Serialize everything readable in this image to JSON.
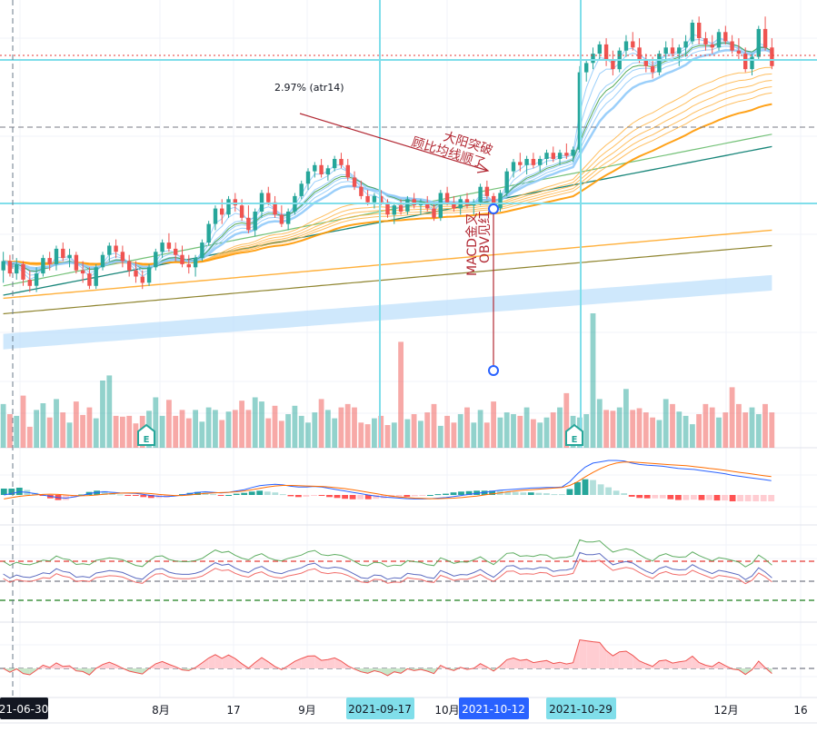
{
  "chart_data": {
    "type": "candlestick",
    "title": "",
    "colors": {
      "up": "#26a69a",
      "down": "#ef5350",
      "volume_up": "#26a69a",
      "volume_down": "#ef5350",
      "grid": "#f0f3fa",
      "crosshair_cyan": "#80deea",
      "annotation_red": "#b22833",
      "marker_blue": "#2962ff",
      "ma_short_blue": "#90caf9",
      "ma_short_green": "#43a047",
      "ma_long_orange": "#ffb74d",
      "ma_orange_bold": "#ff9800",
      "ma_green": "#66bb6a",
      "ma_teal": "#00796b",
      "ma_orange2": "#ffa726",
      "ma_olive": "#827717",
      "band_blue": "#bbdefb",
      "macd_line": "#2962ff",
      "signal_line": "#ff6d00",
      "rsi_green": "#43a047",
      "rsi_blue": "#3f51b5",
      "rsi_red": "#ef5350",
      "area_pos": "#ffcdd2",
      "area_neg": "#c8e6c9",
      "date_badge_cyan": "#80deea",
      "date_badge_blue": "#2962ff",
      "date_badge_dark": "#131722"
    },
    "x_axis": {
      "tick_labels": [
        "8月",
        "17",
        "9月",
        "10月",
        "12月",
        "16"
      ],
      "highlighted_dates": [
        {
          "label": "21-06-30",
          "style": "dark"
        },
        {
          "label": "2021-09-17",
          "style": "cyan"
        },
        {
          "label": "2021-10-12",
          "style": "blue"
        },
        {
          "label": "2021-10-29",
          "style": "cyan"
        }
      ]
    },
    "annotations": {
      "atr_label": "2.97% (atr14)",
      "arrow_text_line1": "大阳突破",
      "arrow_text_line2": "顾比均线顺了",
      "vertical_text_line1": "MACD金叉",
      "vertical_text_line2": "OBV见红",
      "earnings_marker_1": "E",
      "earnings_marker_2": "E"
    },
    "candles": [
      [
        12.0,
        12.6,
        11.6,
        12.3
      ],
      [
        12.3,
        12.5,
        11.8,
        11.9
      ],
      [
        11.9,
        12.4,
        11.7,
        12.2
      ],
      [
        12.2,
        12.3,
        11.5,
        11.7
      ],
      [
        11.7,
        12.0,
        11.3,
        11.5
      ],
      [
        11.5,
        12.1,
        11.3,
        11.9
      ],
      [
        11.9,
        12.5,
        11.8,
        12.4
      ],
      [
        12.4,
        12.6,
        12.0,
        12.2
      ],
      [
        12.2,
        12.8,
        12.0,
        12.7
      ],
      [
        12.7,
        12.9,
        12.3,
        12.4
      ],
      [
        12.4,
        12.7,
        12.1,
        12.5
      ],
      [
        12.5,
        12.6,
        11.9,
        12.0
      ],
      [
        12.0,
        12.3,
        11.6,
        11.9
      ],
      [
        11.9,
        12.1,
        11.4,
        11.5
      ],
      [
        11.5,
        12.2,
        11.4,
        12.1
      ],
      [
        12.1,
        12.6,
        12.0,
        12.5
      ],
      [
        12.5,
        12.9,
        12.3,
        12.8
      ],
      [
        12.8,
        13.0,
        12.4,
        12.6
      ],
      [
        12.6,
        12.8,
        12.1,
        12.3
      ],
      [
        12.3,
        12.5,
        11.8,
        12.0
      ],
      [
        12.0,
        12.3,
        11.6,
        11.8
      ],
      [
        11.8,
        12.0,
        11.4,
        11.6
      ],
      [
        11.6,
        12.2,
        11.5,
        12.1
      ],
      [
        12.1,
        12.7,
        12.0,
        12.6
      ],
      [
        12.6,
        13.0,
        12.4,
        12.9
      ],
      [
        12.9,
        13.2,
        12.6,
        12.7
      ],
      [
        12.7,
        12.9,
        12.3,
        12.5
      ],
      [
        12.5,
        12.8,
        12.1,
        12.2
      ],
      [
        12.2,
        12.5,
        11.9,
        12.1
      ],
      [
        12.1,
        12.5,
        11.8,
        12.4
      ],
      [
        12.4,
        13.0,
        12.3,
        12.9
      ],
      [
        12.9,
        13.6,
        12.8,
        13.5
      ],
      [
        13.5,
        14.1,
        13.3,
        14.0
      ],
      [
        14.0,
        14.3,
        13.5,
        13.8
      ],
      [
        13.8,
        14.4,
        13.7,
        14.3
      ],
      [
        14.3,
        14.5,
        13.9,
        14.1
      ],
      [
        14.1,
        14.3,
        13.6,
        13.7
      ],
      [
        13.7,
        14.1,
        13.2,
        13.3
      ],
      [
        13.3,
        14.0,
        13.1,
        13.9
      ],
      [
        13.9,
        14.6,
        13.7,
        14.5
      ],
      [
        14.5,
        14.7,
        14.1,
        14.2
      ],
      [
        14.2,
        14.4,
        13.7,
        13.8
      ],
      [
        13.8,
        14.1,
        13.4,
        13.5
      ],
      [
        13.5,
        14.0,
        13.3,
        13.9
      ],
      [
        13.9,
        14.5,
        13.8,
        14.4
      ],
      [
        14.4,
        14.9,
        14.3,
        14.8
      ],
      [
        14.8,
        15.3,
        14.6,
        15.2
      ],
      [
        15.2,
        15.5,
        15.0,
        15.4
      ],
      [
        15.4,
        15.6,
        15.0,
        15.1
      ],
      [
        15.1,
        15.4,
        14.9,
        15.3
      ],
      [
        15.3,
        15.7,
        15.2,
        15.6
      ],
      [
        15.6,
        15.8,
        15.3,
        15.4
      ],
      [
        15.4,
        15.6,
        14.9,
        15.0
      ],
      [
        15.0,
        15.2,
        14.6,
        14.7
      ],
      [
        14.7,
        14.9,
        14.3,
        14.4
      ],
      [
        14.4,
        14.6,
        14.1,
        14.2
      ],
      [
        14.2,
        14.5,
        14.0,
        14.4
      ],
      [
        14.4,
        14.6,
        14.1,
        14.2
      ],
      [
        14.2,
        14.3,
        13.7,
        13.8
      ],
      [
        13.8,
        14.2,
        13.5,
        14.1
      ],
      [
        14.1,
        14.3,
        13.8,
        13.9
      ],
      [
        13.9,
        14.4,
        13.8,
        14.3
      ],
      [
        14.3,
        14.5,
        14.0,
        14.1
      ],
      [
        14.1,
        14.3,
        13.8,
        14.2
      ],
      [
        14.2,
        14.4,
        13.9,
        14.0
      ],
      [
        14.0,
        14.2,
        13.6,
        13.7
      ],
      [
        13.7,
        14.6,
        13.6,
        14.5
      ],
      [
        14.5,
        14.7,
        14.1,
        14.2
      ],
      [
        14.2,
        14.4,
        13.9,
        14.0
      ],
      [
        14.0,
        14.4,
        13.8,
        14.3
      ],
      [
        14.3,
        14.5,
        14.0,
        14.1
      ],
      [
        14.1,
        14.3,
        13.8,
        14.2
      ],
      [
        14.2,
        14.8,
        14.1,
        14.7
      ],
      [
        14.7,
        14.9,
        14.3,
        14.4
      ],
      [
        14.4,
        14.5,
        13.9,
        14.0
      ],
      [
        14.0,
        14.6,
        13.9,
        14.5
      ],
      [
        14.5,
        15.3,
        14.4,
        15.2
      ],
      [
        15.2,
        15.6,
        15.0,
        15.5
      ],
      [
        15.5,
        15.8,
        15.2,
        15.4
      ],
      [
        15.4,
        15.7,
        15.1,
        15.6
      ],
      [
        15.6,
        15.8,
        15.3,
        15.4
      ],
      [
        15.4,
        15.7,
        15.2,
        15.6
      ],
      [
        15.6,
        15.9,
        15.4,
        15.8
      ],
      [
        15.8,
        16.0,
        15.5,
        15.6
      ],
      [
        15.6,
        15.9,
        15.4,
        15.8
      ],
      [
        15.8,
        16.1,
        15.6,
        15.7
      ],
      [
        15.7,
        16.0,
        15.5,
        15.9
      ],
      [
        15.9,
        18.6,
        15.8,
        18.4
      ],
      [
        18.4,
        18.8,
        18.1,
        18.7
      ],
      [
        18.7,
        19.2,
        18.5,
        19.0
      ],
      [
        19.0,
        19.4,
        18.8,
        19.3
      ],
      [
        19.3,
        19.5,
        18.6,
        18.8
      ],
      [
        18.8,
        19.1,
        18.3,
        18.5
      ],
      [
        18.5,
        19.2,
        18.4,
        19.1
      ],
      [
        19.1,
        19.6,
        18.9,
        19.4
      ],
      [
        19.4,
        19.7,
        19.1,
        19.2
      ],
      [
        19.2,
        19.5,
        18.7,
        18.8
      ],
      [
        18.8,
        19.0,
        18.4,
        18.6
      ],
      [
        18.6,
        18.9,
        18.2,
        18.4
      ],
      [
        18.4,
        19.1,
        18.3,
        19.0
      ],
      [
        19.0,
        19.4,
        18.8,
        19.2
      ],
      [
        19.2,
        19.5,
        18.9,
        19.0
      ],
      [
        19.0,
        19.3,
        18.6,
        19.2
      ],
      [
        19.2,
        19.6,
        18.9,
        19.4
      ],
      [
        19.4,
        20.1,
        19.3,
        20.0
      ],
      [
        20.0,
        20.2,
        19.3,
        19.5
      ],
      [
        19.5,
        19.7,
        19.1,
        19.3
      ],
      [
        19.3,
        19.6,
        19.0,
        19.2
      ],
      [
        19.2,
        19.8,
        19.1,
        19.7
      ],
      [
        19.7,
        19.9,
        19.3,
        19.4
      ],
      [
        19.4,
        19.6,
        19.0,
        19.1
      ],
      [
        19.1,
        19.5,
        18.8,
        19.0
      ],
      [
        19.0,
        19.2,
        18.4,
        18.5
      ],
      [
        18.5,
        19.0,
        18.3,
        18.9
      ],
      [
        18.9,
        19.9,
        18.8,
        19.8
      ],
      [
        19.8,
        20.2,
        19.1,
        19.2
      ],
      [
        19.2,
        19.5,
        18.5,
        18.6
      ]
    ],
    "volume": [
      52,
      40,
      38,
      62,
      25,
      45,
      53,
      36,
      58,
      42,
      30,
      55,
      39,
      48,
      35,
      80,
      86,
      38,
      37,
      38,
      29,
      38,
      44,
      60,
      38,
      57,
      38,
      45,
      35,
      45,
      31,
      48,
      45,
      33,
      43,
      45,
      56,
      45,
      60,
      55,
      35,
      50,
      32,
      40,
      50,
      38,
      30,
      42,
      58,
      45,
      35,
      48,
      52,
      48,
      30,
      28,
      35,
      38,
      27,
      30,
      126,
      34,
      40,
      32,
      42,
      52,
      26,
      38,
      30,
      40,
      48,
      30,
      45,
      30,
      55,
      36,
      42,
      40,
      38,
      48,
      34,
      30,
      36,
      42,
      48,
      65,
      38,
      36,
      40,
      160,
      58,
      45,
      44,
      48,
      70,
      45,
      47,
      42,
      36,
      33,
      58,
      52,
      43,
      38,
      28,
      40,
      52,
      48,
      36,
      42,
      72,
      52,
      42,
      48,
      40,
      52,
      42,
      58,
      50
    ],
    "macd": [
      0.0,
      0.05,
      0.12,
      0.1,
      0.05,
      0.0,
      -0.05,
      -0.1,
      -0.12,
      -0.08,
      -0.02,
      0.05,
      0.1,
      0.12,
      0.1,
      0.08,
      0.07,
      0.06,
      0.02,
      -0.02,
      -0.05,
      -0.06,
      -0.04,
      0.0,
      0.05,
      0.1,
      0.12,
      0.1,
      0.08,
      0.1,
      0.15,
      0.2,
      0.28,
      0.35,
      0.38,
      0.4,
      0.38,
      0.33,
      0.3,
      0.3,
      0.32,
      0.3,
      0.25,
      0.2,
      0.15,
      0.1,
      0.05,
      0.0,
      -0.04,
      -0.08,
      -0.1,
      -0.12,
      -0.14,
      -0.15,
      -0.15,
      -0.14,
      -0.12,
      -0.1,
      -0.06,
      -0.02,
      0.02,
      0.06,
      0.1,
      0.14,
      0.18,
      0.2,
      0.22,
      0.24,
      0.26,
      0.27,
      0.28,
      0.28,
      0.3,
      0.5,
      0.8,
      1.05,
      1.2,
      1.25,
      1.3,
      1.3,
      1.28,
      1.2,
      1.15,
      1.12,
      1.1,
      1.08,
      1.04,
      1.0,
      0.98,
      0.96,
      0.92,
      0.88,
      0.84,
      0.8,
      0.74,
      0.7,
      0.66,
      0.62,
      0.58,
      0.54
    ],
    "signal": [
      -0.15,
      -0.1,
      -0.05,
      -0.02,
      0.0,
      0.02,
      0.03,
      0.02,
      0.0,
      -0.02,
      -0.03,
      -0.02,
      0.0,
      0.03,
      0.05,
      0.07,
      0.08,
      0.08,
      0.07,
      0.05,
      0.02,
      0.0,
      -0.02,
      -0.02,
      0.0,
      0.03,
      0.06,
      0.08,
      0.09,
      0.1,
      0.12,
      0.15,
      0.2,
      0.25,
      0.3,
      0.34,
      0.36,
      0.36,
      0.35,
      0.34,
      0.33,
      0.32,
      0.3,
      0.27,
      0.24,
      0.2,
      0.15,
      0.1,
      0.05,
      0.0,
      -0.04,
      -0.08,
      -0.1,
      -0.12,
      -0.13,
      -0.14,
      -0.14,
      -0.13,
      -0.12,
      -0.1,
      -0.07,
      -0.04,
      0.0,
      0.04,
      0.08,
      0.12,
      0.15,
      0.18,
      0.2,
      0.22,
      0.24,
      0.26,
      0.28,
      0.36,
      0.5,
      0.68,
      0.85,
      1.0,
      1.12,
      1.2,
      1.24,
      1.24,
      1.22,
      1.2,
      1.18,
      1.16,
      1.14,
      1.12,
      1.1,
      1.07,
      1.04,
      1.0,
      0.97,
      0.93,
      0.89,
      0.85,
      0.81,
      0.77,
      0.73,
      0.69
    ],
    "rsi_upper": 70,
    "rsi_mid": 50,
    "rsi_lower": 30,
    "osc_zero": 0
  }
}
